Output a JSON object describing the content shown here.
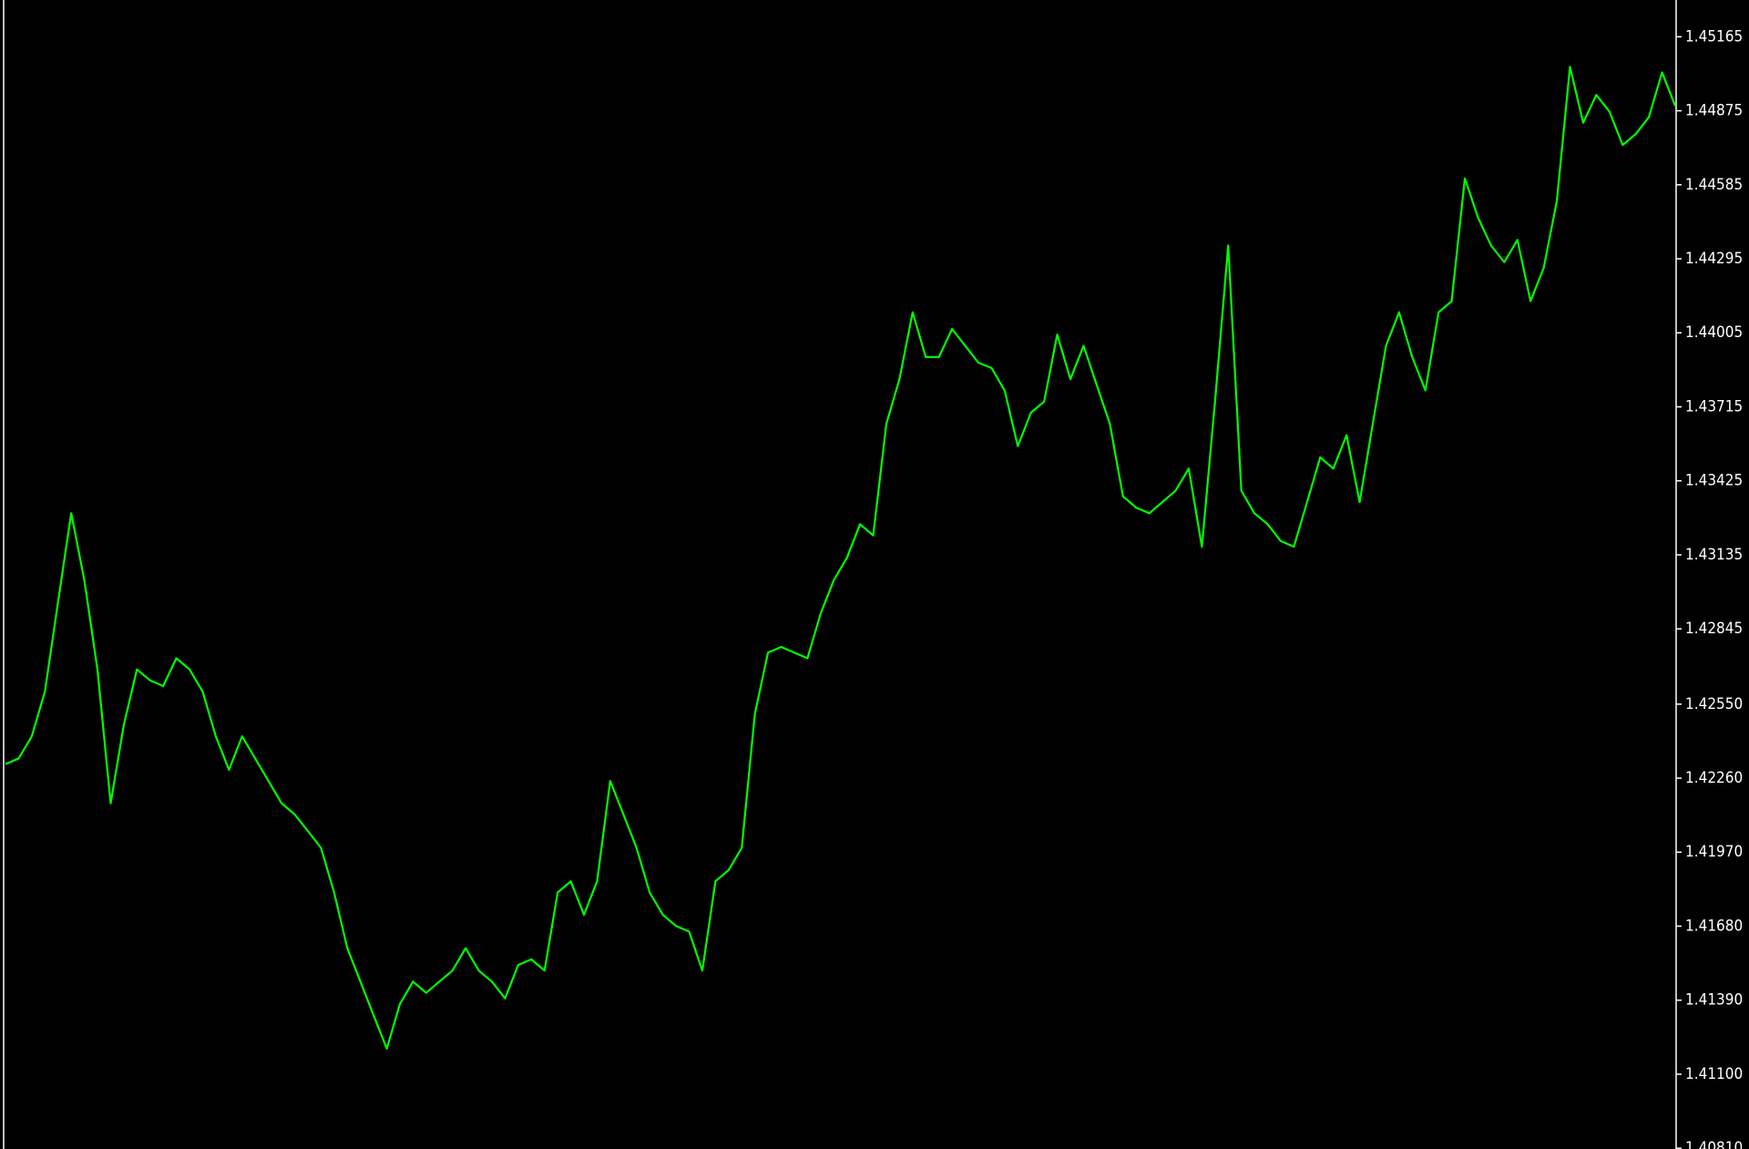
{
  "chart_data": {
    "type": "line",
    "color": "#00ff00",
    "grid": false,
    "ylim": [
      1.40807,
      1.45309
    ],
    "yticks": [
      1.45165,
      1.44875,
      1.44585,
      1.44295,
      1.44005,
      1.43715,
      1.43425,
      1.43135,
      1.42845,
      {
        "value": 1.4255,
        "label": "1.42550"
      },
      {
        "value": 1.4226,
        "label": "1.42260"
      },
      {
        "value": 1.4197,
        "label": "1.41970"
      },
      {
        "value": 1.4168,
        "label": "1.41680"
      },
      {
        "value": 1.4139,
        "label": "1.41390"
      },
      {
        "value": 1.411,
        "label": "1.41100"
      },
      {
        "value": 1.4081,
        "label": "1.40810"
      }
    ],
    "values": [
      1.42315,
      1.42337,
      1.42424,
      1.42599,
      1.42949,
      1.43298,
      1.43036,
      1.42686,
      1.42162,
      1.42468,
      1.42686,
      1.42643,
      1.42621,
      1.4273,
      1.42686,
      1.42599,
      1.42424,
      1.42293,
      1.42424,
      1.42337,
      1.42249,
      1.42162,
      1.42118,
      1.42053,
      1.41987,
      1.41812,
      1.41594,
      1.41463,
      1.41331,
      1.412,
      1.41375,
      1.41463,
      1.41419,
      1.41463,
      1.41506,
      1.41594,
      1.41506,
      1.41463,
      1.41397,
      1.41528,
      1.4155,
      1.41506,
      1.41812,
      1.41856,
      1.41725,
      1.41856,
      1.42249,
      1.42118,
      1.41987,
      1.41812,
      1.41725,
      1.41681,
      1.41659,
      1.41506,
      1.41856,
      1.419,
      1.41987,
      1.42512,
      1.42752,
      1.42774,
      1.42752,
      1.4273,
      1.42905,
      1.43036,
      1.43123,
      1.43255,
      1.43211,
      1.43648,
      1.43823,
      1.44085,
      1.4391,
      1.4391,
      1.4402,
      1.43954,
      1.43888,
      1.43867,
      1.43779,
      1.43561,
      1.43692,
      1.43735,
      1.43998,
      1.43823,
      1.43954,
      1.43801,
      1.43648,
      1.43364,
      1.4332,
      1.43298,
      1.43342,
      1.43386,
      1.43473,
      1.43167,
      1.43735,
      1.44347,
      1.43386,
      1.43298,
      1.43255,
      1.43189,
      1.43167,
      1.43342,
      1.43517,
      1.43473,
      1.43604,
      1.43342,
      1.43648,
      1.43954,
      1.44085,
      1.4391,
      1.43779,
      1.44085,
      1.44129,
      1.4461,
      1.44457,
      1.44347,
      1.44282,
      1.44369,
      1.44129,
      1.4426,
      1.44522,
      1.45047,
      1.44828,
      1.44937,
      1.44872,
      1.44741,
      1.44784,
      1.4485,
      1.45025,
      1.44894
    ]
  }
}
